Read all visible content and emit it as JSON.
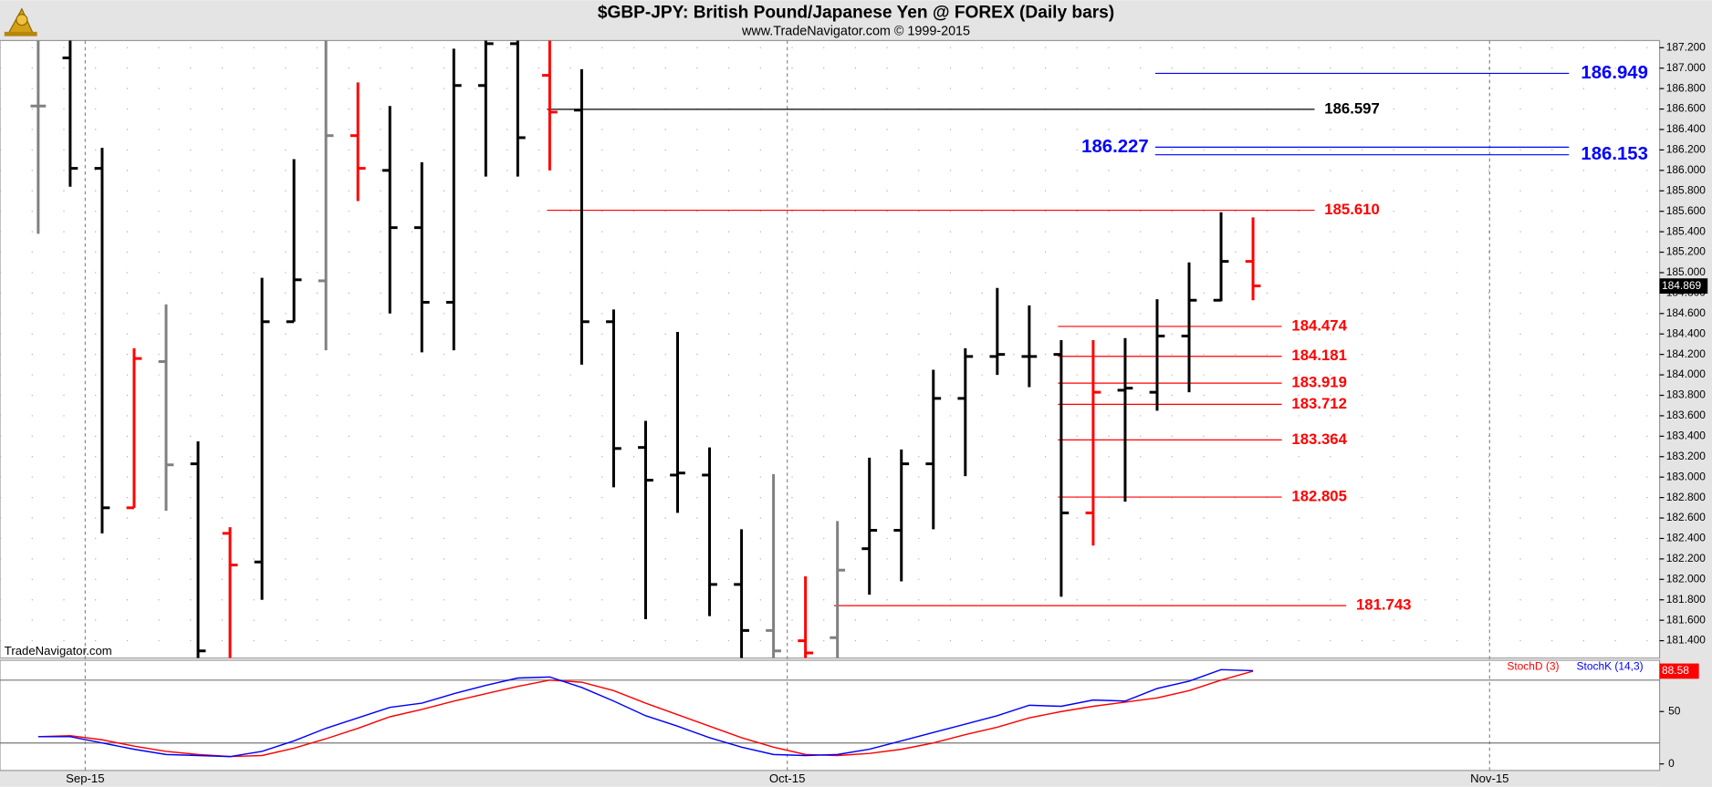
{
  "chart_data": {
    "type": "ohlc",
    "title": "$GBP-JPY:  British Pound/Japanese Yen @ FOREX  (Daily bars)",
    "subtitle": "www.TradeNavigator.com © 1999-2015",
    "watermark": "TradeNavigator.com",
    "ylim": [
      181.23,
      187.27
    ],
    "yticks": [
      {
        "value": 181.4,
        "label": "181.400"
      },
      {
        "value": 181.6,
        "label": "181.600"
      },
      {
        "value": 181.8,
        "label": "181.800"
      },
      {
        "value": 182.0,
        "label": "182.000"
      },
      {
        "value": 182.2,
        "label": "182.200"
      },
      {
        "value": 182.4,
        "label": "182.400"
      },
      {
        "value": 182.6,
        "label": "182.600"
      },
      {
        "value": 182.8,
        "label": "182.800"
      },
      {
        "value": 183.0,
        "label": "183.000"
      },
      {
        "value": 183.2,
        "label": "183.200"
      },
      {
        "value": 183.4,
        "label": "183.400"
      },
      {
        "value": 183.6,
        "label": "183.600"
      },
      {
        "value": 183.8,
        "label": "183.800"
      },
      {
        "value": 184.0,
        "label": "184.000"
      },
      {
        "value": 184.2,
        "label": "184.200"
      },
      {
        "value": 184.4,
        "label": "184.400"
      },
      {
        "value": 184.6,
        "label": "184.600"
      },
      {
        "value": 184.8,
        "label": "184.800"
      },
      {
        "value": 185.0,
        "label": "185.000"
      },
      {
        "value": 185.2,
        "label": "185.200"
      },
      {
        "value": 185.4,
        "label": "185.400"
      },
      {
        "value": 185.6,
        "label": "185.600"
      },
      {
        "value": 185.8,
        "label": "185.800"
      },
      {
        "value": 186.0,
        "label": "186.000"
      },
      {
        "value": 186.2,
        "label": "186.200"
      },
      {
        "value": 186.4,
        "label": "186.400"
      },
      {
        "value": 186.6,
        "label": "186.600"
      },
      {
        "value": 186.8,
        "label": "186.800"
      },
      {
        "value": 187.0,
        "label": "187.000"
      },
      {
        "value": 187.2,
        "label": "187.200"
      }
    ],
    "xticks": [
      {
        "value": 1.47,
        "label": "Sep-15"
      },
      {
        "value": 23.43,
        "label": "Oct-15"
      },
      {
        "value": 45.4,
        "label": "Nov-15"
      }
    ],
    "grid": true,
    "open": [
      186.63,
      187.1,
      186.02,
      182.7,
      184.13,
      183.13,
      182.45,
      182.17,
      184.52,
      184.92,
      186.34,
      186.0,
      185.44,
      184.71,
      186.83,
      187.24,
      186.93,
      186.59,
      184.52,
      183.29,
      183.02,
      183.02,
      181.95,
      181.5,
      181.4,
      181.43,
      182.3,
      182.48,
      183.13,
      183.77,
      184.18,
      184.18,
      184.2,
      182.65,
      183.85,
      183.83,
      184.38,
      184.73,
      185.11
    ],
    "high": [
      187.27,
      187.27,
      186.22,
      184.26,
      184.69,
      183.35,
      182.51,
      184.95,
      186.11,
      187.27,
      186.86,
      186.63,
      186.08,
      187.19,
      187.27,
      187.27,
      187.27,
      186.99,
      184.64,
      183.55,
      184.42,
      183.29,
      182.49,
      183.03,
      182.03,
      182.57,
      183.19,
      183.27,
      184.05,
      184.26,
      184.85,
      184.68,
      184.34,
      184.34,
      184.36,
      184.74,
      185.1,
      185.59,
      185.54
    ],
    "low": [
      185.38,
      185.84,
      182.45,
      182.7,
      182.67,
      181.23,
      181.23,
      181.8,
      184.52,
      184.24,
      185.7,
      184.6,
      184.22,
      184.24,
      185.94,
      185.94,
      186.0,
      184.1,
      182.9,
      181.61,
      182.65,
      181.64,
      181.23,
      181.23,
      181.23,
      181.23,
      181.85,
      181.98,
      182.49,
      183.01,
      184.0,
      183.88,
      181.83,
      182.33,
      182.76,
      183.65,
      183.83,
      184.72,
      184.73
    ],
    "close": [
      186.63,
      186.02,
      182.7,
      184.16,
      183.12,
      181.3,
      182.14,
      184.52,
      184.93,
      186.34,
      186.02,
      185.44,
      184.71,
      186.83,
      187.24,
      186.32,
      186.57,
      184.52,
      183.28,
      182.97,
      183.04,
      181.95,
      181.5,
      181.3,
      181.28,
      182.09,
      182.48,
      183.13,
      183.77,
      184.18,
      184.2,
      184.18,
      182.65,
      183.83,
      183.87,
      184.38,
      184.73,
      185.11,
      184.87
    ],
    "colors": [
      "#808080",
      "#000000",
      "#000000",
      "#ff0000",
      "#808080",
      "#000000",
      "#ff0000",
      "#000000",
      "#000000",
      "#808080",
      "#ff0000",
      "#000000",
      "#000000",
      "#000000",
      "#000000",
      "#000000",
      "#ff0000",
      "#000000",
      "#000000",
      "#000000",
      "#000000",
      "#000000",
      "#000000",
      "#808080",
      "#ff0000",
      "#808080",
      "#000000",
      "#000000",
      "#000000",
      "#000000",
      "#000000",
      "#000000",
      "#000000",
      "#ff0000",
      "#000000",
      "#000000",
      "#000000",
      "#000000",
      "#ff0000"
    ],
    "last_price": {
      "value": 184.869,
      "label": "184.869"
    },
    "levels": [
      {
        "value": 186.949,
        "label": "186.949",
        "color": "#0000ff"
      },
      {
        "value": 186.597,
        "label": "186.597",
        "color": "#000000"
      },
      {
        "value": 186.227,
        "label": "186.227",
        "color": "#0000ff"
      },
      {
        "value": 186.153,
        "label": "186.153",
        "color": "#0000ff"
      },
      {
        "value": 185.61,
        "label": "185.610",
        "color": "#ff0000"
      },
      {
        "value": 184.474,
        "label": "184.474",
        "color": "#ff0000"
      },
      {
        "value": 184.181,
        "label": "184.181",
        "color": "#ff0000"
      },
      {
        "value": 183.919,
        "label": "183.919",
        "color": "#ff0000"
      },
      {
        "value": 183.712,
        "label": "183.712",
        "color": "#ff0000"
      },
      {
        "value": 183.364,
        "label": "183.364",
        "color": "#ff0000"
      },
      {
        "value": 182.805,
        "label": "182.805",
        "color": "#ff0000"
      },
      {
        "value": 181.743,
        "label": "181.743",
        "color": "#ff0000"
      }
    ],
    "indicator": {
      "type": "line",
      "ylim": [
        0,
        100
      ],
      "yticks": [
        0,
        50
      ],
      "hlines": [
        80,
        20
      ],
      "series": [
        {
          "name": "StochD (3)",
          "color": "#ff0000",
          "values": [
            26,
            27,
            23,
            17,
            12,
            9,
            7,
            8,
            15,
            24,
            34,
            45,
            52,
            60,
            67,
            74,
            80,
            78,
            70,
            58,
            47,
            36,
            25,
            16,
            9,
            8,
            10,
            14,
            20,
            28,
            35,
            44,
            50,
            55,
            59,
            63,
            70,
            80,
            88.58
          ]
        },
        {
          "name": "StochK (14,3)",
          "color": "#0000ff",
          "values": [
            26,
            26,
            20,
            14,
            9,
            8,
            7,
            12,
            22,
            34,
            44,
            54,
            58,
            67,
            75,
            82,
            83,
            73,
            60,
            46,
            36,
            25,
            16,
            9,
            8,
            9,
            14,
            22,
            30,
            38,
            46,
            56,
            55,
            61,
            60,
            72,
            79,
            90,
            89
          ]
        }
      ],
      "last_value": {
        "value": 88.58,
        "label": "88.58"
      }
    }
  }
}
